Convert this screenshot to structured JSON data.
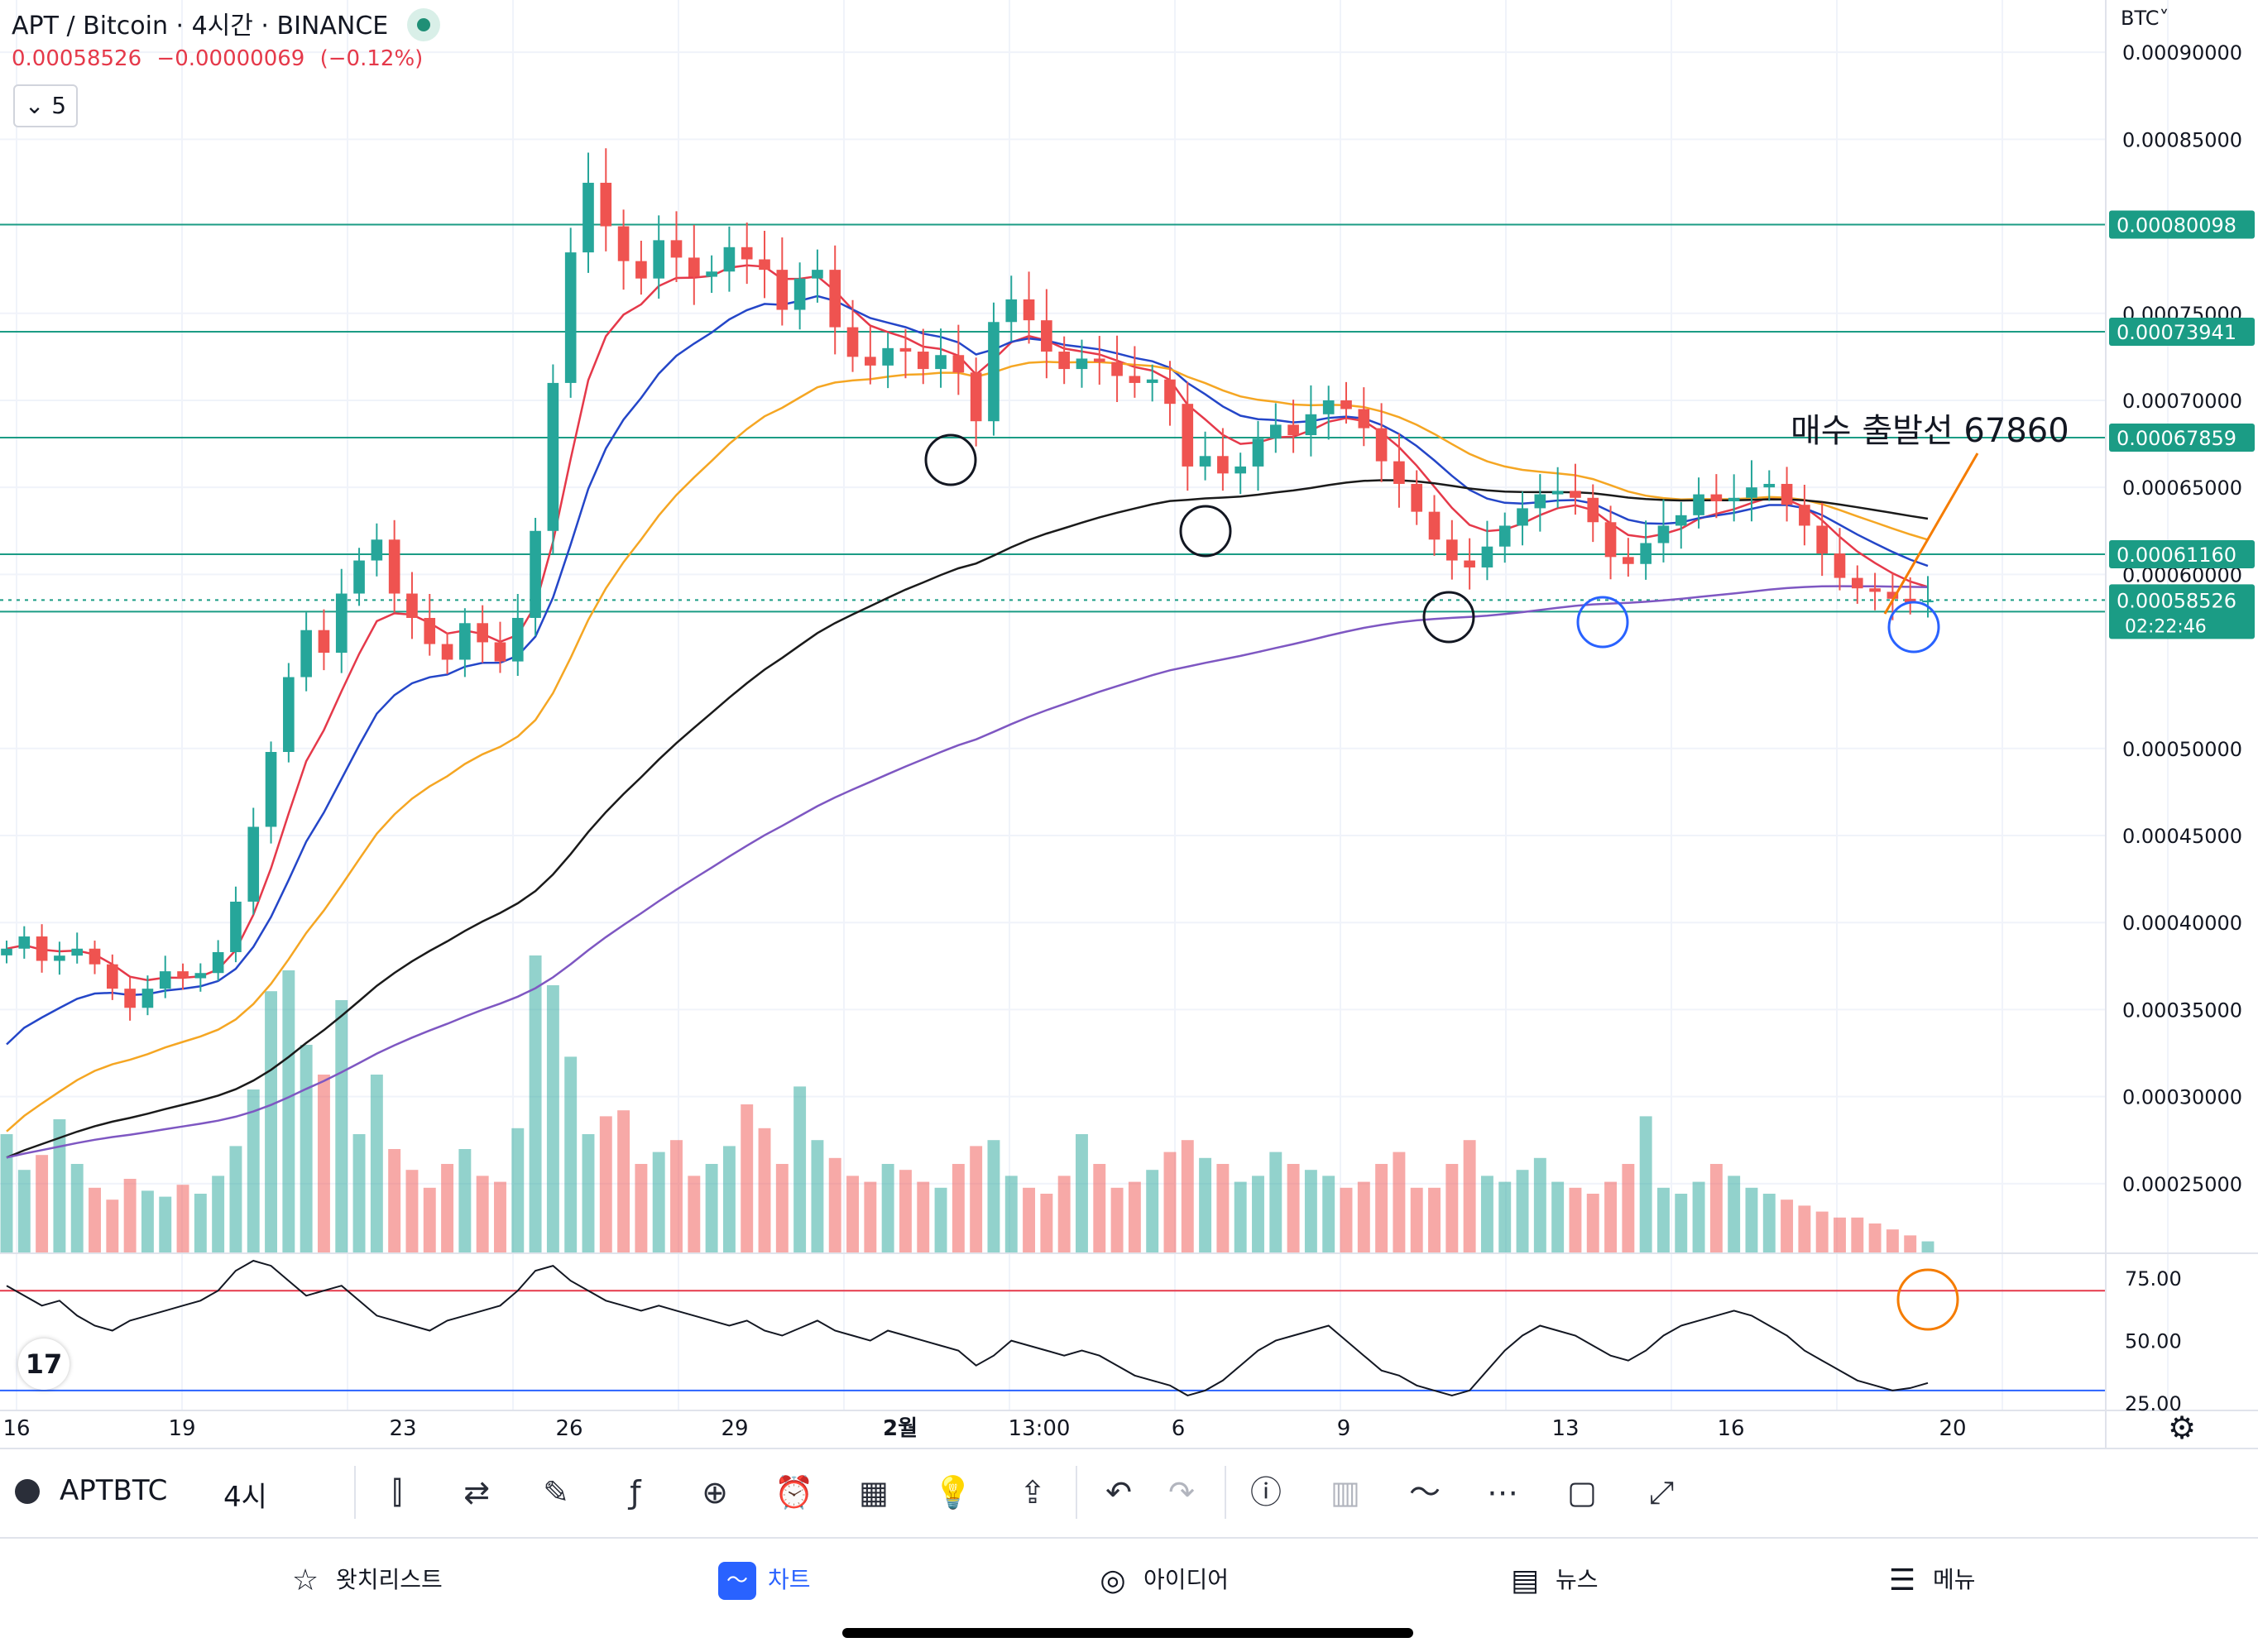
{
  "header": {
    "title": "APT / Bitcoin · 4시간 · BINANCE",
    "price": "0.00058526",
    "change": "−0.00000069",
    "change_pct": "(−0.12%)",
    "collapse_count": "5"
  },
  "currency": "BTC˅",
  "annotation": "매수 출발선 67860",
  "price_axis": {
    "ticks": [
      {
        "value": 0.0009,
        "label": "0.00090000"
      },
      {
        "value": 0.00085,
        "label": "0.00085000"
      },
      {
        "value": 0.00075,
        "label": "0.00075000"
      },
      {
        "value": 0.0007,
        "label": "0.00070000"
      },
      {
        "value": 0.00065,
        "label": "0.00065000"
      },
      {
        "value": 0.0006,
        "label": "0.00060000"
      },
      {
        "value": 0.0005,
        "label": "0.00050000"
      },
      {
        "value": 0.00045,
        "label": "0.00045000"
      },
      {
        "value": 0.0004,
        "label": "0.00040000"
      },
      {
        "value": 0.00035,
        "label": "0.00035000"
      },
      {
        "value": 0.0003,
        "label": "0.00030000"
      },
      {
        "value": 0.00025,
        "label": "0.00025000"
      }
    ],
    "hlines": [
      {
        "value": 0.00080098,
        "label": "0.00080098"
      },
      {
        "value": 0.00073941,
        "label": "0.00073941"
      },
      {
        "value": 0.00067859,
        "label": "0.00067859"
      },
      {
        "value": 0.0006116,
        "label": "0.00061160"
      },
      {
        "value": 0.0005786,
        "label": "0.00057860"
      }
    ],
    "last_price": {
      "value": 0.00058526,
      "label": "0.00058526",
      "countdown": "02:22:46"
    }
  },
  "rsi_axis": {
    "ticks": [
      {
        "value": 75,
        "label": "75.00"
      },
      {
        "value": 50,
        "label": "50.00"
      },
      {
        "value": 25,
        "label": "25.00"
      }
    ],
    "upper_band": 70,
    "lower_band": 30
  },
  "time_axis": [
    "16",
    "19",
    "23",
    "26",
    "29",
    "2월",
    "13:00",
    "6",
    "9",
    "13",
    "16",
    "20"
  ],
  "colors": {
    "up": "#26a69a",
    "down": "#ef5350",
    "hline": "#1b9c85",
    "ma_red": "#e5394a",
    "ma_blue": "#2446c8",
    "ma_orange": "#f5a623",
    "ma_black": "#1a1a1a",
    "ma_purple": "#7e57c2",
    "arrow": "#f57c00"
  },
  "chart_data": {
    "type": "candlestick",
    "title": "APT / Bitcoin · 4시간 · BINANCE",
    "ohlc_close": [
      0.000385,
      0.000392,
      0.000378,
      0.000381,
      0.000385,
      0.000376,
      0.000362,
      0.000351,
      0.000362,
      0.000372,
      0.000368,
      0.000371,
      0.000383,
      0.000412,
      0.000455,
      0.000498,
      0.000541,
      0.000568,
      0.000555,
      0.000589,
      0.000608,
      0.00062,
      0.000589,
      0.000575,
      0.00056,
      0.000551,
      0.000572,
      0.000561,
      0.00055,
      0.000575,
      0.000625,
      0.00071,
      0.000785,
      0.000825,
      0.0008,
      0.00078,
      0.00077,
      0.000792,
      0.000782,
      0.000771,
      0.000774,
      0.000788,
      0.000781,
      0.000775,
      0.000752,
      0.00077,
      0.000775,
      0.000742,
      0.000725,
      0.00072,
      0.00073,
      0.000728,
      0.000718,
      0.000726,
      0.000716,
      0.000688,
      0.000745,
      0.000758,
      0.000746,
      0.000728,
      0.000718,
      0.000724,
      0.000722,
      0.000714,
      0.00071,
      0.000712,
      0.000698,
      0.000662,
      0.000668,
      0.000658,
      0.000662,
      0.000678,
      0.000686,
      0.00068,
      0.000692,
      0.0007,
      0.000695,
      0.000684,
      0.000665,
      0.000652,
      0.000636,
      0.00062,
      0.000608,
      0.000604,
      0.000616,
      0.000628,
      0.000638,
      0.000646,
      0.000648,
      0.000644,
      0.00063,
      0.00061,
      0.000606,
      0.000618,
      0.000628,
      0.000634,
      0.000646,
      0.000642,
      0.000644,
      0.00065,
      0.000652,
      0.00064,
      0.000628,
      0.000612,
      0.000598,
      0.000592,
      0.00059,
      0.000586,
      0.000584,
      0.000585
    ],
    "volume": [
      40,
      28,
      33,
      45,
      30,
      22,
      18,
      25,
      21,
      19,
      23,
      20,
      26,
      36,
      55,
      88,
      95,
      70,
      60,
      85,
      40,
      60,
      35,
      28,
      22,
      30,
      35,
      26,
      24,
      42,
      100,
      90,
      66,
      40,
      46,
      48,
      30,
      34,
      38,
      26,
      30,
      36,
      50,
      42,
      30,
      56,
      38,
      32,
      26,
      24,
      30,
      28,
      24,
      22,
      30,
      36,
      38,
      26,
      22,
      20,
      26,
      40,
      30,
      22,
      24,
      28,
      34,
      38,
      32,
      30,
      24,
      26,
      34,
      30,
      28,
      26,
      22,
      24,
      30,
      34,
      22,
      22,
      30,
      38,
      26,
      24,
      28,
      32,
      24,
      22,
      20,
      24,
      30,
      46,
      22,
      20,
      24,
      30,
      26,
      22,
      20,
      18,
      16,
      14,
      12,
      12,
      10,
      8,
      6,
      4
    ],
    "rsi": [
      72,
      68,
      64,
      66,
      60,
      56,
      54,
      58,
      60,
      62,
      64,
      66,
      70,
      78,
      82,
      80,
      74,
      68,
      70,
      72,
      66,
      60,
      58,
      56,
      54,
      58,
      60,
      62,
      64,
      70,
      78,
      80,
      74,
      70,
      66,
      64,
      62,
      64,
      62,
      60,
      58,
      56,
      58,
      54,
      52,
      55,
      58,
      54,
      52,
      50,
      54,
      52,
      50,
      48,
      46,
      40,
      44,
      50,
      48,
      46,
      44,
      46,
      44,
      40,
      36,
      34,
      32,
      28,
      30,
      34,
      40,
      46,
      50,
      52,
      54,
      56,
      50,
      44,
      38,
      36,
      32,
      30,
      28,
      30,
      38,
      46,
      52,
      56,
      54,
      52,
      48,
      44,
      42,
      46,
      52,
      56,
      58,
      60,
      62,
      60,
      56,
      52,
      46,
      42,
      38,
      34,
      32,
      30,
      31,
      33
    ],
    "ylim": [
      0.00021,
      0.00093
    ],
    "rsi_ylim": [
      22,
      85
    ]
  }
}
